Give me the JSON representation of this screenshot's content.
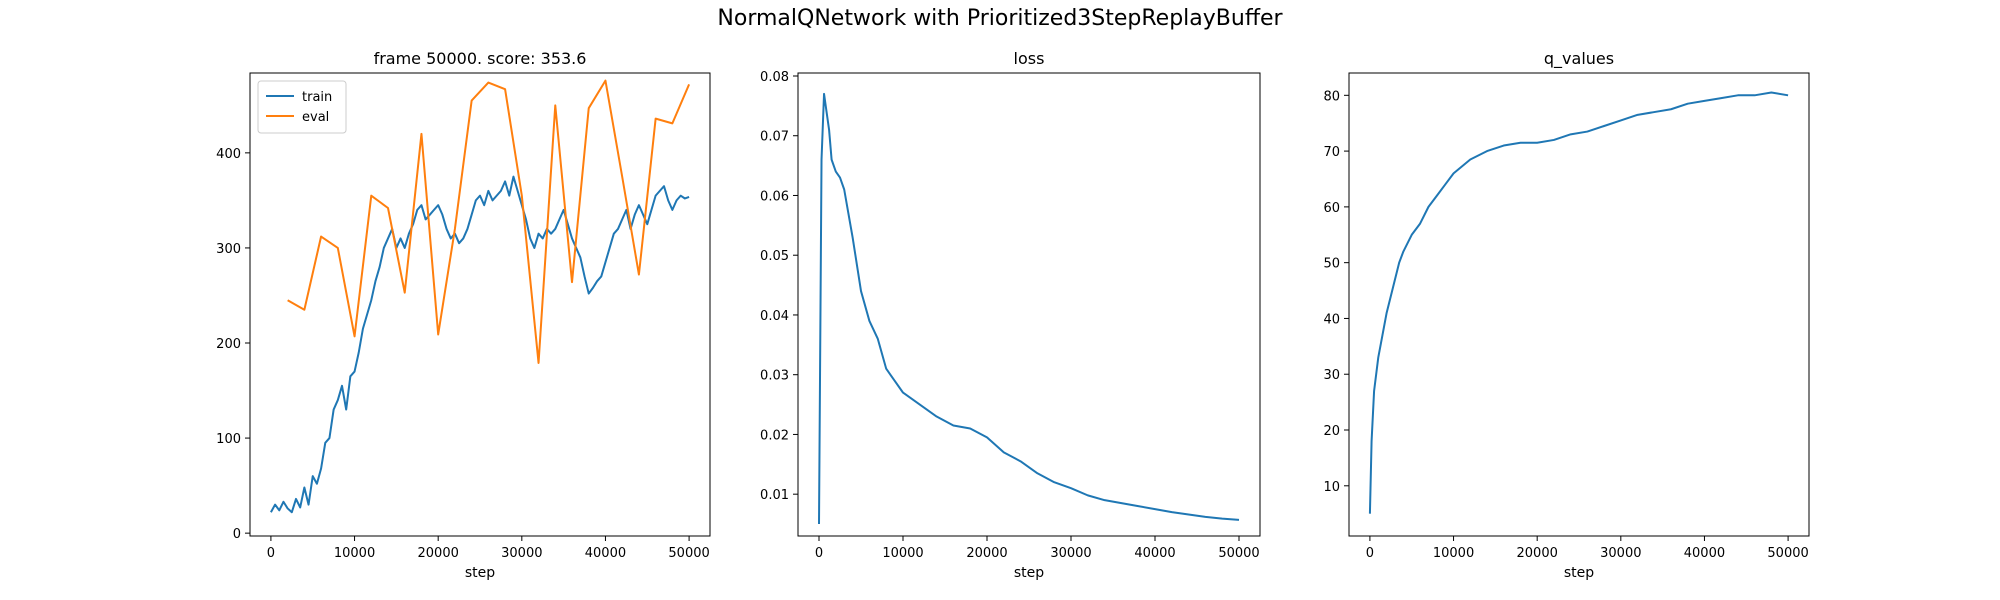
{
  "figure": {
    "suptitle": "NormalQNetwork with Prioritized3StepReplayBuffer"
  },
  "colors": {
    "train": "#1f77b4",
    "eval": "#ff7f0e"
  },
  "chart_data": [
    {
      "type": "line",
      "title": "frame 50000. score: 353.6",
      "xlabel": "step",
      "ylabel": "",
      "xlim": [
        -2500,
        52500
      ],
      "ylim": [
        -3,
        484
      ],
      "xticks": [
        0,
        10000,
        20000,
        30000,
        40000,
        50000
      ],
      "yticks": [
        0,
        100,
        200,
        300,
        400
      ],
      "grid": false,
      "legend": "top-left",
      "series": [
        {
          "name": "train",
          "color": "#1f77b4",
          "x": [
            0,
            500,
            1000,
            1500,
            2000,
            2500,
            3000,
            3500,
            4000,
            4500,
            5000,
            5500,
            6000,
            6500,
            7000,
            7500,
            8000,
            8500,
            9000,
            9500,
            10000,
            10500,
            11000,
            11500,
            12000,
            12500,
            13000,
            13500,
            14000,
            14500,
            15000,
            15500,
            16000,
            16500,
            17000,
            17500,
            18000,
            18500,
            19000,
            19500,
            20000,
            20500,
            21000,
            21500,
            22000,
            22500,
            23000,
            23500,
            24000,
            24500,
            25000,
            25500,
            26000,
            26500,
            27000,
            27500,
            28000,
            28500,
            29000,
            29500,
            30000,
            30500,
            31000,
            31500,
            32000,
            32500,
            33000,
            33500,
            34000,
            34500,
            35000,
            35500,
            36000,
            36500,
            37000,
            37500,
            38000,
            38500,
            39000,
            39500,
            40000,
            40500,
            41000,
            41500,
            42000,
            42500,
            43000,
            43500,
            44000,
            44500,
            45000,
            45500,
            46000,
            46500,
            47000,
            47500,
            48000,
            48500,
            49000,
            49500,
            50000
          ],
          "y": [
            22,
            30,
            24,
            33,
            26,
            22,
            36,
            27,
            48,
            30,
            60,
            52,
            68,
            95,
            100,
            130,
            140,
            155,
            130,
            165,
            170,
            190,
            215,
            230,
            245,
            265,
            280,
            300,
            310,
            320,
            300,
            310,
            300,
            315,
            325,
            340,
            345,
            330,
            335,
            340,
            345,
            335,
            320,
            310,
            315,
            305,
            310,
            320,
            335,
            350,
            355,
            345,
            360,
            350,
            355,
            360,
            370,
            355,
            375,
            360,
            345,
            330,
            310,
            300,
            315,
            310,
            320,
            315,
            320,
            330,
            340,
            325,
            310,
            300,
            290,
            270,
            252,
            258,
            265,
            270,
            285,
            300,
            315,
            320,
            330,
            340,
            320,
            335,
            345,
            335,
            325,
            340,
            355,
            360,
            365,
            350,
            340,
            350,
            355,
            352,
            353.6
          ]
        },
        {
          "name": "eval",
          "color": "#ff7f0e",
          "x": [
            2000,
            4000,
            6000,
            8000,
            10000,
            12000,
            14000,
            16000,
            18000,
            20000,
            22000,
            24000,
            26000,
            28000,
            30000,
            32000,
            34000,
            36000,
            38000,
            40000,
            42000,
            44000,
            46000,
            48000,
            50000
          ],
          "y": [
            245,
            235,
            312,
            300,
            207,
            355,
            342,
            253,
            420,
            209,
            320,
            455,
            474,
            467,
            355,
            179,
            450,
            264,
            447,
            476,
            375,
            272,
            436,
            431,
            472
          ]
        }
      ]
    },
    {
      "type": "line",
      "title": "loss",
      "xlabel": "step",
      "ylabel": "",
      "xlim": [
        -2500,
        52500
      ],
      "ylim": [
        0.003,
        0.0805
      ],
      "xticks": [
        0,
        10000,
        20000,
        30000,
        40000,
        50000
      ],
      "yticks": [
        0.01,
        0.02,
        0.03,
        0.04,
        0.05,
        0.06,
        0.07,
        0.08
      ],
      "grid": false,
      "series": [
        {
          "color": "#1f77b4",
          "x": [
            0,
            300,
            600,
            900,
            1200,
            1500,
            2000,
            2500,
            3000,
            3500,
            4000,
            5000,
            6000,
            7000,
            8000,
            9000,
            10000,
            12000,
            14000,
            16000,
            18000,
            20000,
            22000,
            24000,
            26000,
            28000,
            30000,
            32000,
            34000,
            36000,
            38000,
            40000,
            42000,
            44000,
            46000,
            48000,
            50000
          ],
          "y": [
            0.005,
            0.066,
            0.077,
            0.074,
            0.071,
            0.066,
            0.064,
            0.063,
            0.061,
            0.057,
            0.053,
            0.044,
            0.039,
            0.036,
            0.031,
            0.029,
            0.027,
            0.025,
            0.023,
            0.0215,
            0.021,
            0.0195,
            0.017,
            0.0155,
            0.0135,
            0.012,
            0.011,
            0.0098,
            0.009,
            0.0085,
            0.008,
            0.0075,
            0.007,
            0.0066,
            0.0062,
            0.0059,
            0.0057
          ]
        }
      ]
    },
    {
      "type": "line",
      "title": "q_values",
      "xlabel": "step",
      "ylabel": "",
      "xlim": [
        -2500,
        52500
      ],
      "ylim": [
        1,
        84
      ],
      "xticks": [
        0,
        10000,
        20000,
        30000,
        40000,
        50000
      ],
      "yticks": [
        10,
        20,
        30,
        40,
        50,
        60,
        70,
        80
      ],
      "grid": false,
      "series": [
        {
          "color": "#1f77b4",
          "x": [
            0,
            200,
            500,
            1000,
            1500,
            2000,
            2500,
            3000,
            3500,
            4000,
            5000,
            6000,
            7000,
            8000,
            9000,
            10000,
            12000,
            14000,
            16000,
            18000,
            20000,
            22000,
            24000,
            26000,
            28000,
            30000,
            32000,
            34000,
            36000,
            38000,
            40000,
            42000,
            44000,
            46000,
            48000,
            50000
          ],
          "y": [
            5,
            18,
            27,
            33,
            37,
            41,
            44,
            47,
            50,
            52,
            55,
            57,
            60,
            62,
            64,
            66,
            68.5,
            70,
            71,
            71.5,
            71.5,
            72,
            73,
            73.5,
            74.5,
            75.5,
            76.5,
            77,
            77.5,
            78.5,
            79,
            79.5,
            80,
            80,
            80.5,
            80
          ]
        }
      ]
    }
  ]
}
